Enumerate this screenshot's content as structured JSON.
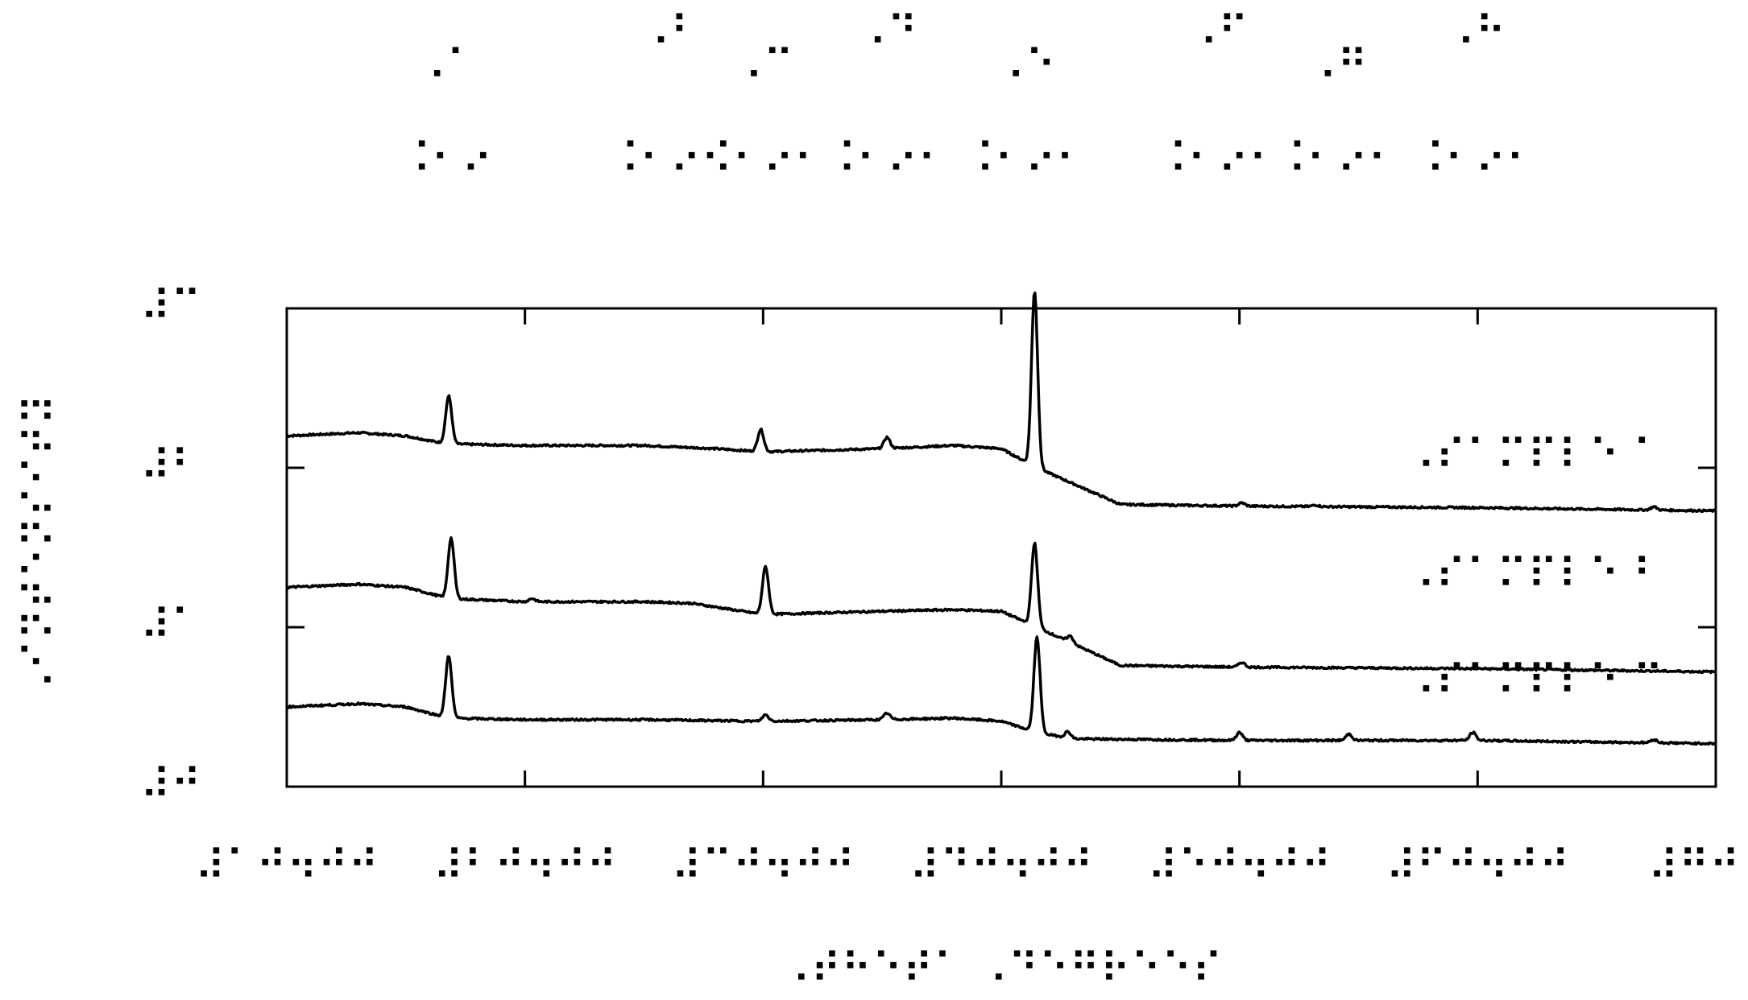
{
  "chart_data": {
    "type": "line",
    "xlabel": "⠠⠞⠓⠑⠞⠁ ⠠⠙⠑⠛⠗⠑⠑⠎",
    "ylabel": "⠠⠊⠝⠞⠑⠝⠎⠊⠞⠽",
    "xlim": [
      10,
      70
    ],
    "ylim": [
      0,
      3
    ],
    "x_ticks": [
      {
        "value": 10,
        "label": "⠼⠁⠚⠲⠚⠚"
      },
      {
        "value": 20,
        "label": "⠼⠃⠚⠲⠚⠚"
      },
      {
        "value": 30,
        "label": "⠼⠉⠚⠲⠚⠚"
      },
      {
        "value": 40,
        "label": "⠼⠙⠚⠲⠚⠚"
      },
      {
        "value": 50,
        "label": "⠼⠑⠚⠲⠚⠚"
      },
      {
        "value": 60,
        "label": "⠼⠋⠚⠲⠚⠚"
      },
      {
        "value": 70,
        "label": "⠼⠛⠚"
      }
    ],
    "y_ticks": [
      {
        "value": 3,
        "label": "⠼⠉"
      },
      {
        "value": 2,
        "label": "⠼⠃"
      },
      {
        "value": 1,
        "label": "⠼⠁"
      },
      {
        "value": 0,
        "label": "⠼⠚"
      }
    ],
    "top_annotations": [
      {
        "x": 16.7,
        "line1": "⠠⠁",
        "line2": "⠨⠂⠔"
      },
      {
        "x": 26.1,
        "line1": "⠠⠃",
        "line2": "⠨⠂⠔⠂"
      },
      {
        "x": 30.0,
        "line1": "⠠⠉",
        "line2": "⠨⠂⠔⠂"
      },
      {
        "x": 35.2,
        "line1": "⠠⠙",
        "line2": "⠨⠂⠔⠂"
      },
      {
        "x": 41.0,
        "line1": "⠠⠑",
        "line2": "⠨⠂⠔⠂"
      },
      {
        "x": 49.1,
        "line1": "⠠⠋",
        "line2": "⠨⠂⠔⠂"
      },
      {
        "x": 54.1,
        "line1": "⠠⠛",
        "line2": "⠨⠂⠔⠂"
      },
      {
        "x": 59.9,
        "line1": "⠠⠓",
        "line2": "⠨⠂⠔⠂"
      }
    ],
    "series": [
      {
        "name": "⠠⠎⠁⠍⠏⠇⠑ ⠁",
        "offset": 2.0,
        "baseline": [
          [
            10,
            0.2
          ],
          [
            13,
            0.22
          ],
          [
            15,
            0.2
          ],
          [
            16.7,
            0.15
          ],
          [
            20,
            0.14
          ],
          [
            25,
            0.14
          ],
          [
            28,
            0.12
          ],
          [
            30,
            0.1
          ],
          [
            35,
            0.12
          ],
          [
            38,
            0.14
          ],
          [
            40,
            0.12
          ],
          [
            41.5,
            0.0
          ],
          [
            45,
            -0.23
          ],
          [
            50,
            -0.24
          ],
          [
            60,
            -0.25
          ],
          [
            70,
            -0.27
          ]
        ],
        "peaks": [
          [
            16.8,
            0.3
          ],
          [
            29.9,
            0.14
          ],
          [
            35.2,
            0.07
          ],
          [
            41.4,
            1.1
          ],
          [
            50.1,
            0.02
          ],
          [
            53.2,
            0.01
          ],
          [
            67.4,
            0.02
          ]
        ]
      },
      {
        "name": "⠠⠎⠁⠍⠏⠇⠑ ⠃",
        "offset": 1.0,
        "baseline": [
          [
            10,
            0.25
          ],
          [
            13,
            0.27
          ],
          [
            15,
            0.25
          ],
          [
            16.8,
            0.18
          ],
          [
            20,
            0.16
          ],
          [
            25,
            0.16
          ],
          [
            27,
            0.15
          ],
          [
            30,
            0.08
          ],
          [
            35,
            0.1
          ],
          [
            38,
            0.11
          ],
          [
            40,
            0.1
          ],
          [
            41.5,
            0.0
          ],
          [
            45,
            -0.24
          ],
          [
            50,
            -0.25
          ],
          [
            60,
            -0.26
          ],
          [
            70,
            -0.28
          ]
        ],
        "peaks": [
          [
            16.9,
            0.38
          ],
          [
            20.3,
            0.02
          ],
          [
            30.1,
            0.3
          ],
          [
            41.4,
            0.52
          ],
          [
            42.9,
            0.04
          ],
          [
            50.1,
            0.03
          ]
        ]
      },
      {
        "name": "⠠⠎⠁⠍⠏⠇⠑ ⠉",
        "offset": 0.0,
        "baseline": [
          [
            10,
            0.5
          ],
          [
            13,
            0.52
          ],
          [
            15,
            0.5
          ],
          [
            16.8,
            0.43
          ],
          [
            20,
            0.42
          ],
          [
            25,
            0.42
          ],
          [
            30,
            0.41
          ],
          [
            35,
            0.42
          ],
          [
            38,
            0.43
          ],
          [
            40,
            0.41
          ],
          [
            41.5,
            0.34
          ],
          [
            43,
            0.3
          ],
          [
            50,
            0.29
          ],
          [
            60,
            0.29
          ],
          [
            70,
            0.27
          ]
        ],
        "peaks": [
          [
            16.8,
            0.39
          ],
          [
            30.1,
            0.04
          ],
          [
            35.2,
            0.04
          ],
          [
            41.5,
            0.6
          ],
          [
            42.8,
            0.04
          ],
          [
            50.0,
            0.05
          ],
          [
            54.6,
            0.04
          ],
          [
            59.8,
            0.05
          ],
          [
            67.4,
            0.02
          ]
        ]
      }
    ],
    "series_label_positions": "right, above each trace",
    "legend": "none"
  }
}
